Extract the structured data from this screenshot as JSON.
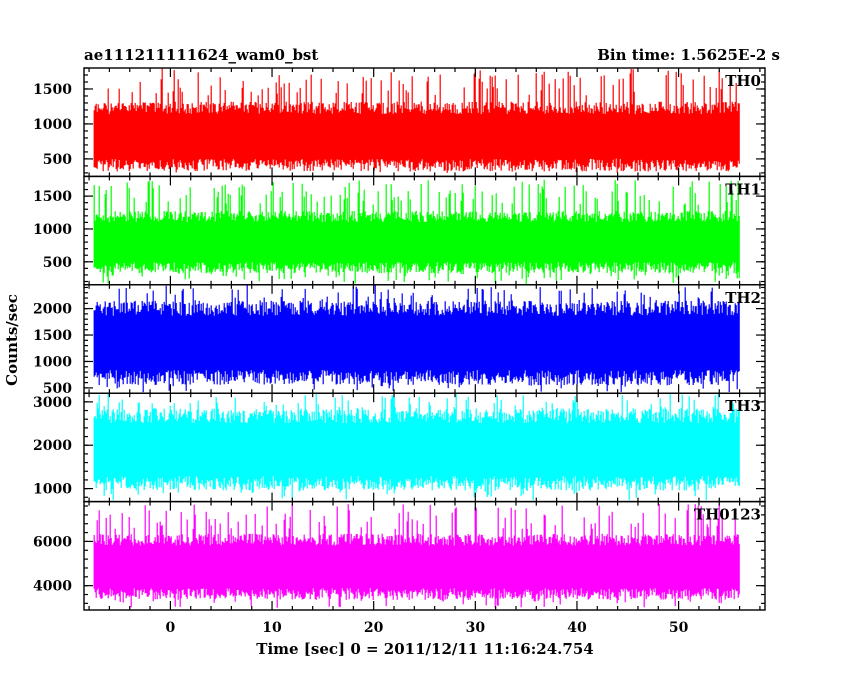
{
  "chart_data": {
    "type": "line",
    "title": "ae111211111624_wam0_bst",
    "subtitle": "Bin time: 1.5625E-2 s",
    "xlabel": "Time [sec] 0 = 2011/12/11 11:16:24.754",
    "ylabel": "Counts/sec",
    "xlim": [
      -8.5,
      58.5
    ],
    "data_xrange": [
      -7.5,
      56
    ],
    "bin_time": 0.015625,
    "x_ticks": [
      0,
      10,
      20,
      30,
      40,
      50
    ],
    "grid": false,
    "legend": "none",
    "panels": [
      {
        "name": "TH0",
        "color": "#ff0000",
        "ylim": [
          250,
          1800
        ],
        "y_ticks": [
          500,
          1000,
          1500
        ],
        "mean": 820,
        "noise": 200,
        "spike_prob": 0.02,
        "spike_max": 1800,
        "floor_min": 300
      },
      {
        "name": "TH1",
        "color": "#00ff00",
        "ylim": [
          150,
          1800
        ],
        "y_ticks": [
          500,
          1000,
          1500
        ],
        "mean": 800,
        "noise": 190,
        "spike_prob": 0.02,
        "spike_max": 1750,
        "floor_min": 160
      },
      {
        "name": "TH2",
        "color": "#0000ff",
        "ylim": [
          400,
          2450
        ],
        "y_ticks": [
          500,
          1000,
          1500,
          2000
        ],
        "mean": 1350,
        "noise": 320,
        "spike_prob": 0.02,
        "spike_max": 2450,
        "floor_min": 420
      },
      {
        "name": "TH3",
        "color": "#00ffff",
        "ylim": [
          700,
          3200
        ],
        "y_ticks": [
          1000,
          2000,
          3000
        ],
        "mean": 1900,
        "noise": 380,
        "spike_prob": 0.02,
        "spike_max": 3200,
        "floor_min": 720
      },
      {
        "name": "TH0123",
        "color": "#ff00ff",
        "ylim": [
          2900,
          7800
        ],
        "y_ticks": [
          4000,
          6000
        ],
        "mean": 4850,
        "noise": 600,
        "spike_prob": 0.02,
        "spike_max": 7700,
        "floor_min": 3000
      }
    ]
  }
}
